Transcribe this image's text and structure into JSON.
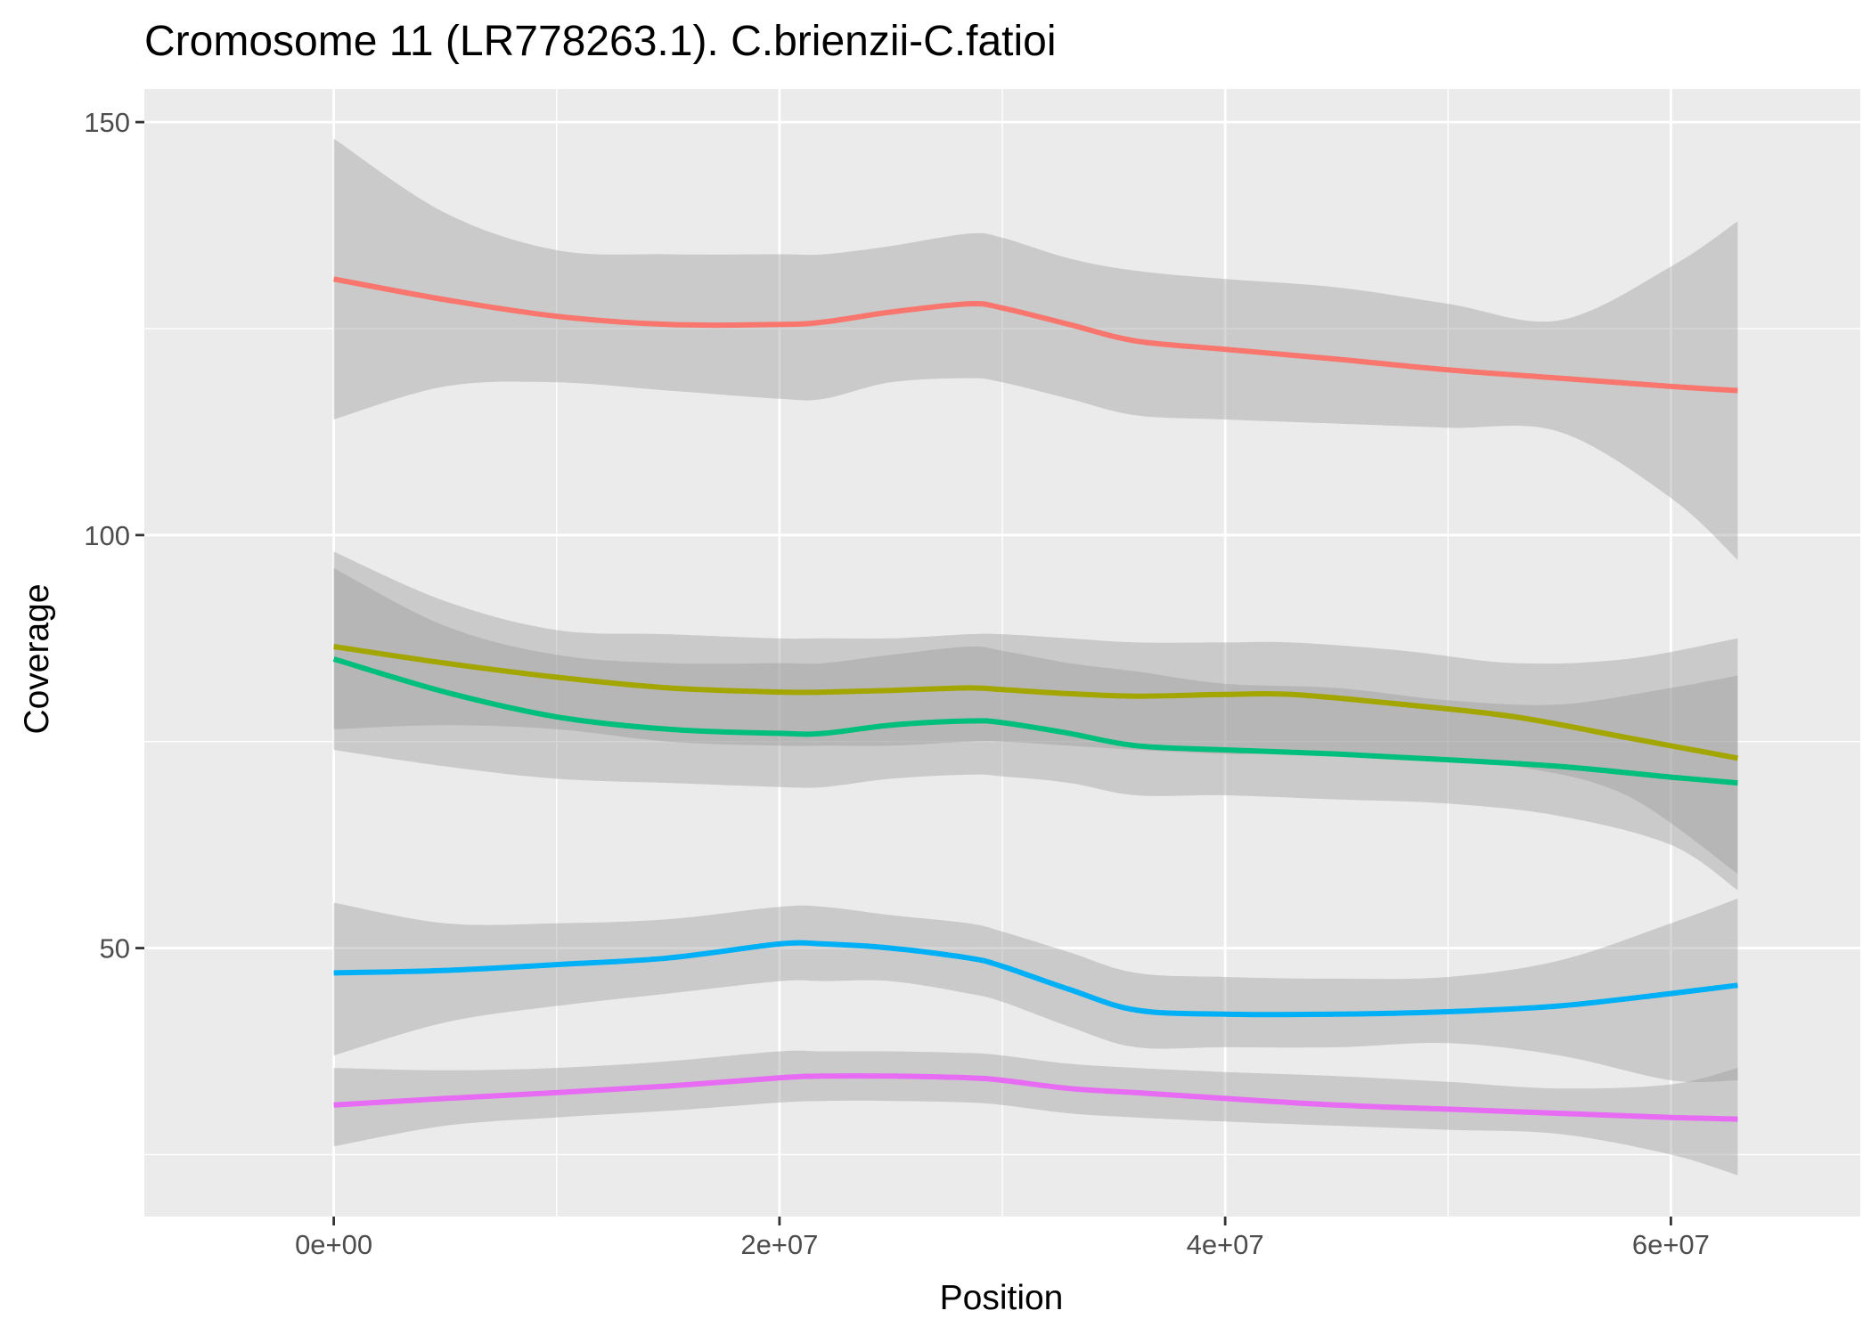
{
  "chart_data": {
    "type": "line",
    "title": "Cromosome 11 (LR778263.1). C.brienzii-C.fatioi",
    "xlabel": "Position",
    "ylabel": "Coverage",
    "xlim": [
      -8500000,
      68500000
    ],
    "ylim": [
      17.5,
      154
    ],
    "x_ticks": [
      {
        "value": 0,
        "label": "0e+00"
      },
      {
        "value": 20000000,
        "label": "2e+07"
      },
      {
        "value": 40000000,
        "label": "4e+07"
      },
      {
        "value": 60000000,
        "label": "6e+07"
      }
    ],
    "x_minor": [
      10000000,
      30000000,
      50000000
    ],
    "y_ticks": [
      {
        "value": 50,
        "label": "50"
      },
      {
        "value": 100,
        "label": "100"
      },
      {
        "value": 150,
        "label": "150"
      }
    ],
    "y_minor": [
      25,
      75,
      125
    ],
    "grid": true,
    "legend": "none",
    "colors": {
      "panel": "#ebebeb",
      "grid": "#ffffff",
      "ribbon": "#999999",
      "tick": "#333333"
    },
    "series": [
      {
        "color": "#F8766D",
        "x": [
          0,
          5000000,
          10000000,
          15000000,
          20000000,
          22000000,
          25000000,
          28500000,
          30000000,
          33000000,
          36000000,
          40000000,
          45000000,
          50000000,
          55000000,
          60000000,
          63000000
        ],
        "y": [
          131,
          128.5,
          126.5,
          125.5,
          125.5,
          125.8,
          127,
          128,
          127.5,
          125.5,
          123.5,
          122.5,
          121.3,
          120,
          119,
          118,
          117.5
        ],
        "lower": [
          114,
          118,
          118.5,
          117.5,
          116.5,
          116.5,
          118.5,
          119,
          118.5,
          116.5,
          114.5,
          114,
          113.5,
          113,
          112.5,
          104.5,
          97
        ],
        "upper": [
          148,
          139,
          134.5,
          134,
          134,
          134,
          135,
          136.5,
          136,
          133.5,
          132,
          131,
          130,
          128,
          126,
          132.5,
          138
        ]
      },
      {
        "color": "#A3A500",
        "x": [
          0,
          5000000,
          10000000,
          15000000,
          20000000,
          22000000,
          25000000,
          28500000,
          30000000,
          33000000,
          36000000,
          40000000,
          43000000,
          48000000,
          53000000,
          58000000,
          63000000
        ],
        "y": [
          86.5,
          84.5,
          82.8,
          81.5,
          81,
          81,
          81.2,
          81.5,
          81.3,
          80.8,
          80.5,
          80.7,
          80.7,
          79.5,
          78,
          75.5,
          73
        ],
        "lower": [
          76.5,
          77,
          76.5,
          75,
          74.5,
          74.5,
          74.5,
          75,
          75,
          74.5,
          74,
          73.5,
          73.5,
          73,
          72,
          68.5,
          59
        ],
        "upper": [
          98,
          92,
          88.5,
          88,
          87.5,
          87.5,
          87.5,
          88,
          88,
          87.5,
          87,
          87,
          87,
          86,
          84.5,
          85,
          87.5
        ]
      },
      {
        "color": "#00BF7D",
        "x": [
          0,
          5000000,
          10000000,
          15000000,
          20000000,
          22000000,
          25000000,
          28500000,
          30000000,
          33000000,
          36000000,
          40000000,
          45000000,
          50000000,
          55000000,
          60000000,
          63000000
        ],
        "y": [
          85,
          81,
          78,
          76.5,
          76,
          76,
          77,
          77.5,
          77.3,
          76,
          74.5,
          74,
          73.5,
          72.8,
          72,
          70.7,
          70
        ],
        "lower": [
          74,
          72,
          70.5,
          70,
          69.5,
          69.5,
          70.5,
          71,
          70.8,
          70,
          68.5,
          68.5,
          68,
          67.5,
          66,
          62.5,
          57
        ],
        "upper": [
          96,
          89,
          85.5,
          84.5,
          84.5,
          84.5,
          85.5,
          86.5,
          86,
          84.5,
          83.5,
          82,
          81.5,
          80,
          79.5,
          81.5,
          83
        ]
      },
      {
        "color": "#00B0F6",
        "x": [
          0,
          5000000,
          10000000,
          15000000,
          20000000,
          22000000,
          25000000,
          28500000,
          30000000,
          33000000,
          36000000,
          40000000,
          45000000,
          50000000,
          55000000,
          60000000,
          63000000
        ],
        "y": [
          47,
          47.3,
          48,
          48.8,
          50.5,
          50.5,
          50,
          48.8,
          47.8,
          45,
          42.5,
          42,
          42,
          42.3,
          43,
          44.5,
          45.5
        ],
        "lower": [
          37,
          41,
          43,
          44.5,
          46,
          46,
          46,
          44.5,
          43.5,
          40.5,
          38,
          38,
          38,
          38.5,
          37,
          34,
          34
        ],
        "upper": [
          55.5,
          53,
          53,
          53.5,
          55,
          55,
          54,
          53,
          52,
          49.5,
          47,
          46.5,
          46.3,
          46.5,
          48.5,
          53,
          56
        ]
      },
      {
        "color": "#E76BF3",
        "x": [
          0,
          5000000,
          10000000,
          15000000,
          20000000,
          22000000,
          25000000,
          28500000,
          30000000,
          33000000,
          36000000,
          40000000,
          45000000,
          50000000,
          55000000,
          60000000,
          63000000
        ],
        "y": [
          31,
          31.8,
          32.5,
          33.3,
          34.3,
          34.5,
          34.5,
          34.3,
          34,
          33,
          32.5,
          31.8,
          31,
          30.5,
          30,
          29.5,
          29.3
        ],
        "lower": [
          26,
          28.5,
          29.5,
          30.3,
          31.3,
          31.5,
          31.5,
          31.3,
          31,
          30,
          29.5,
          29,
          28.5,
          28,
          27.5,
          25,
          22.5
        ],
        "upper": [
          35.5,
          35.2,
          35.5,
          36.3,
          37.5,
          37.5,
          37.5,
          37.3,
          37,
          36,
          35.5,
          35,
          34.5,
          33.8,
          33,
          33.5,
          35.5
        ]
      }
    ]
  }
}
